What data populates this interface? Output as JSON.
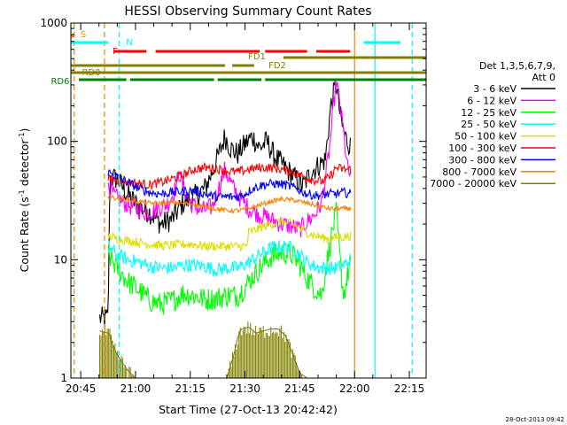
{
  "chart_data": {
    "type": "line",
    "title": "HESSI Observing Summary Count Rates",
    "xlabel": "Start Time (27-Oct-13 20:42:42)",
    "ylabel_parts": [
      "Count Rate (s",
      "-1",
      " detector",
      "-1",
      ")"
    ],
    "y_scale": "log",
    "ylim": [
      1,
      1000
    ],
    "xlim_minutes": [
      -2.7,
      94.6
    ],
    "y_ticks": [
      {
        "value": 1,
        "label": "1"
      },
      {
        "value": 10,
        "label": "10"
      },
      {
        "value": 100,
        "label": "100"
      },
      {
        "value": 1000,
        "label": "1000"
      }
    ],
    "x_ticks": [
      {
        "t": 0,
        "label": "20:45"
      },
      {
        "t": 15,
        "label": "21:00"
      },
      {
        "t": 30,
        "label": "21:15"
      },
      {
        "t": 45,
        "label": "21:30"
      },
      {
        "t": 60,
        "label": "21:45"
      },
      {
        "t": 75,
        "label": "22:00"
      },
      {
        "t": 90,
        "label": "22:15"
      }
    ],
    "legend_header": [
      "Det 1,3,5,6,7,9,",
      "Att 0"
    ],
    "series": [
      {
        "name": "3 - 6 keV",
        "color": "#000000",
        "start": 5.2,
        "jitter": 0.1,
        "points": [
          [
            5.2,
            3.2
          ],
          [
            7.5,
            3.2
          ],
          [
            8,
            50
          ],
          [
            10,
            48
          ],
          [
            13,
            35
          ],
          [
            16,
            28
          ],
          [
            19,
            25
          ],
          [
            22,
            20
          ],
          [
            25,
            22
          ],
          [
            28,
            30
          ],
          [
            31,
            34
          ],
          [
            34,
            40
          ],
          [
            36,
            55
          ],
          [
            38,
            80
          ],
          [
            39.5,
            110
          ],
          [
            41,
            88
          ],
          [
            43,
            78
          ],
          [
            45,
            95
          ],
          [
            47,
            110
          ],
          [
            49,
            88
          ],
          [
            51,
            100
          ],
          [
            53,
            75
          ],
          [
            56,
            60
          ],
          [
            59,
            48
          ],
          [
            61,
            42
          ],
          [
            63,
            55
          ],
          [
            65,
            62
          ],
          [
            67,
            70
          ],
          [
            68.5,
            200
          ],
          [
            70,
            310
          ],
          [
            71,
            170
          ],
          [
            72,
            120
          ],
          [
            73,
            100
          ],
          [
            74,
            90
          ]
        ]
      },
      {
        "name": "6 - 12 keV",
        "color": "#ff00ff",
        "start": 7.5,
        "jitter": 0.08,
        "points": [
          [
            7.5,
            45
          ],
          [
            9,
            35
          ],
          [
            12,
            30
          ],
          [
            15,
            27
          ],
          [
            18,
            25
          ],
          [
            21,
            27
          ],
          [
            24,
            30
          ],
          [
            26,
            40
          ],
          [
            27,
            55
          ],
          [
            28,
            42
          ],
          [
            30,
            30
          ],
          [
            33,
            26
          ],
          [
            36,
            28
          ],
          [
            38,
            42
          ],
          [
            39.5,
            58
          ],
          [
            41,
            45
          ],
          [
            43,
            35
          ],
          [
            46,
            27
          ],
          [
            49,
            24
          ],
          [
            52,
            22
          ],
          [
            55,
            20
          ],
          [
            58,
            19
          ],
          [
            60,
            18
          ],
          [
            62,
            21
          ],
          [
            64,
            24
          ],
          [
            66,
            30
          ],
          [
            68,
            80
          ],
          [
            70,
            330
          ],
          [
            71,
            200
          ],
          [
            72,
            120
          ],
          [
            73,
            60
          ],
          [
            74,
            50
          ]
        ]
      },
      {
        "name": "12 - 25 keV",
        "color": "#00ff00",
        "start": 7.5,
        "jitter": 0.1,
        "points": [
          [
            7.5,
            11
          ],
          [
            10,
            8.5
          ],
          [
            13,
            6.5
          ],
          [
            16,
            5.5
          ],
          [
            19,
            4.5
          ],
          [
            22,
            4.2
          ],
          [
            25,
            4.5
          ],
          [
            28,
            5.2
          ],
          [
            31,
            5.0
          ],
          [
            34,
            4.6
          ],
          [
            37,
            4.7
          ],
          [
            40,
            5.0
          ],
          [
            43,
            5.0
          ],
          [
            46,
            6.5
          ],
          [
            49,
            8.5
          ],
          [
            52,
            10.5
          ],
          [
            55,
            11.5
          ],
          [
            58,
            11
          ],
          [
            60,
            9
          ],
          [
            62,
            7
          ],
          [
            64,
            5.8
          ],
          [
            66,
            5.0
          ],
          [
            67,
            8
          ],
          [
            68,
            12
          ],
          [
            69,
            18
          ],
          [
            70,
            25
          ],
          [
            71,
            10
          ],
          [
            72,
            5
          ],
          [
            73,
            7
          ],
          [
            74,
            10
          ]
        ]
      },
      {
        "name": "25 - 50 keV",
        "color": "#00ffff",
        "start": 7.5,
        "jitter": 0.06,
        "points": [
          [
            7.5,
            13
          ],
          [
            10,
            11
          ],
          [
            13,
            10
          ],
          [
            16,
            9.5
          ],
          [
            19,
            8.8
          ],
          [
            22,
            8.5
          ],
          [
            25,
            8.5
          ],
          [
            28,
            9
          ],
          [
            31,
            9
          ],
          [
            34,
            8.8
          ],
          [
            37,
            8.2
          ],
          [
            40,
            8.5
          ],
          [
            43,
            8.5
          ],
          [
            46,
            9.5
          ],
          [
            49,
            11
          ],
          [
            52,
            12.5
          ],
          [
            55,
            13
          ],
          [
            58,
            12.5
          ],
          [
            60,
            11
          ],
          [
            62,
            9.5
          ],
          [
            64,
            8.8
          ],
          [
            66,
            8.5
          ],
          [
            68,
            8.5
          ],
          [
            70,
            8.5
          ],
          [
            72,
            9
          ],
          [
            74,
            10
          ]
        ]
      },
      {
        "name": "50 - 100 keV",
        "color": "#dddd00",
        "start": 7.5,
        "jitter": 0.04,
        "points": [
          [
            7.5,
            16
          ],
          [
            10,
            15
          ],
          [
            13,
            14.5
          ],
          [
            16,
            14
          ],
          [
            19,
            13.5
          ],
          [
            22,
            13.2
          ],
          [
            25,
            13.2
          ],
          [
            28,
            13.5
          ],
          [
            31,
            13.5
          ],
          [
            34,
            13
          ],
          [
            37,
            13
          ],
          [
            40,
            13
          ],
          [
            43,
            13
          ],
          [
            45.5,
            13
          ],
          [
            46,
            17
          ],
          [
            49,
            18.5
          ],
          [
            52,
            20
          ],
          [
            55,
            21
          ],
          [
            58,
            20
          ],
          [
            60,
            18.5
          ],
          [
            62,
            17
          ],
          [
            64,
            16
          ],
          [
            66,
            15.5
          ],
          [
            68,
            15
          ],
          [
            70,
            15.5
          ],
          [
            72,
            15.5
          ],
          [
            74,
            16
          ]
        ]
      },
      {
        "name": "100 - 300 keV",
        "color": "#ff0000",
        "start": 7.5,
        "jitter": 0.04,
        "points": [
          [
            7.5,
            48
          ],
          [
            10,
            47
          ],
          [
            13,
            45
          ],
          [
            16,
            44
          ],
          [
            19,
            43
          ],
          [
            22,
            45
          ],
          [
            25,
            48
          ],
          [
            28,
            52
          ],
          [
            31,
            58
          ],
          [
            34,
            60
          ],
          [
            37,
            59
          ],
          [
            40,
            56
          ],
          [
            43,
            55
          ],
          [
            46,
            58
          ],
          [
            49,
            60
          ],
          [
            52,
            60
          ],
          [
            55,
            58
          ],
          [
            58,
            55
          ],
          [
            60,
            52
          ],
          [
            62,
            49
          ],
          [
            64,
            47
          ],
          [
            66,
            46
          ],
          [
            68,
            49
          ],
          [
            70,
            60
          ],
          [
            72,
            58
          ],
          [
            74,
            58
          ]
        ]
      },
      {
        "name": "300 - 800 keV",
        "color": "#0000ff",
        "start": 7.5,
        "jitter": 0.04,
        "points": [
          [
            7.5,
            55
          ],
          [
            10,
            50
          ],
          [
            13,
            45
          ],
          [
            16,
            40
          ],
          [
            19,
            37
          ],
          [
            22,
            36
          ],
          [
            25,
            37
          ],
          [
            28,
            38
          ],
          [
            31,
            38
          ],
          [
            34,
            36
          ],
          [
            37,
            34
          ],
          [
            40,
            34
          ],
          [
            43,
            34
          ],
          [
            45,
            36
          ],
          [
            47,
            40
          ],
          [
            50,
            43
          ],
          [
            53,
            44
          ],
          [
            56,
            43
          ],
          [
            59,
            40
          ],
          [
            62,
            36
          ],
          [
            64,
            35
          ],
          [
            66,
            35
          ],
          [
            68,
            36
          ],
          [
            70,
            36
          ],
          [
            72,
            37
          ],
          [
            74,
            36
          ]
        ]
      },
      {
        "name": "800 - 7000 keV",
        "color": "#ff8000",
        "start": 7.5,
        "jitter": 0.02,
        "points": [
          [
            7.5,
            34
          ],
          [
            10,
            33
          ],
          [
            13,
            32
          ],
          [
            16,
            31
          ],
          [
            19,
            30
          ],
          [
            22,
            30
          ],
          [
            25,
            30.5
          ],
          [
            28,
            30
          ],
          [
            31,
            29.5
          ],
          [
            34,
            28
          ],
          [
            37,
            27
          ],
          [
            40,
            26
          ],
          [
            43,
            26
          ],
          [
            46,
            27
          ],
          [
            49,
            29
          ],
          [
            52,
            31
          ],
          [
            55,
            32.5
          ],
          [
            58,
            32
          ],
          [
            60,
            31
          ],
          [
            62,
            30
          ],
          [
            64,
            29
          ],
          [
            66,
            28
          ],
          [
            68,
            27
          ],
          [
            70,
            27
          ],
          [
            72,
            27
          ],
          [
            74,
            27
          ]
        ]
      },
      {
        "name": "7000 - 20000 keV",
        "color": "#808000",
        "start": 5.2,
        "jitter": 0.0,
        "points": [
          [
            5.2,
            2.5
          ],
          [
            7.5,
            2.4
          ],
          [
            8,
            2.3
          ],
          [
            9,
            1.8
          ],
          [
            11,
            1.4
          ],
          [
            13,
            1.15
          ],
          [
            15,
            1.0
          ],
          [
            40,
            1.0
          ],
          [
            42,
            1.6
          ],
          [
            43,
            2.2
          ],
          [
            44,
            2.6
          ],
          [
            46,
            2.7
          ],
          [
            48,
            2.4
          ],
          [
            50,
            2.5
          ],
          [
            52,
            2.6
          ],
          [
            54,
            2.6
          ],
          [
            56,
            2.3
          ],
          [
            58,
            1.6
          ],
          [
            60,
            1.1
          ],
          [
            62,
            1.0
          ],
          [
            74,
            1.0
          ]
        ]
      }
    ],
    "flags": {
      "S": {
        "label": "S",
        "color": "#ff8000",
        "segments": [
          [
            -2.7,
            -1.8
          ]
        ]
      },
      "N": {
        "label": "N",
        "color": "#00ffff",
        "segments": [
          [
            -2.7,
            7.5
          ],
          [
            77.5,
            87.5
          ]
        ]
      },
      "F": {
        "label": "F",
        "color": "#ff0000",
        "segments": [
          [
            9,
            18
          ],
          [
            20.5,
            49
          ],
          [
            50.5,
            62
          ],
          [
            64.5,
            73.8
          ]
        ]
      },
      "FD1": {
        "label": "FD1",
        "color": "#808000",
        "segments": [
          [
            55.5,
            94.6
          ]
        ]
      },
      "FD2": {
        "label": "FD2",
        "color": "#808000",
        "segments": [
          [
            -2.7,
            39.5
          ],
          [
            41.5,
            47.5
          ]
        ]
      },
      "RD0": {
        "label": "RD0",
        "color": "#808000",
        "segments": [
          [
            -2.7,
            94.6
          ]
        ]
      },
      "RD6": {
        "label": "RD6",
        "color": "#008000",
        "segments": [
          [
            -0.5,
            12.5
          ],
          [
            13.5,
            36.5
          ],
          [
            37.5,
            49.5
          ],
          [
            50.5,
            95
          ]
        ]
      }
    },
    "saa_lines": {
      "color": "#00ffff",
      "solid_t": [
        -2.7,
        80.6
      ],
      "dashed_t": [
        10.5,
        90.8
      ]
    },
    "attenuator_lines": {
      "color": "#ff8000",
      "solid_t": [
        75.0
      ],
      "dashed_t": [
        -1.8,
        6.5
      ]
    }
  },
  "footer": {
    "timestamp": "28-Oct-2013 09:42"
  }
}
